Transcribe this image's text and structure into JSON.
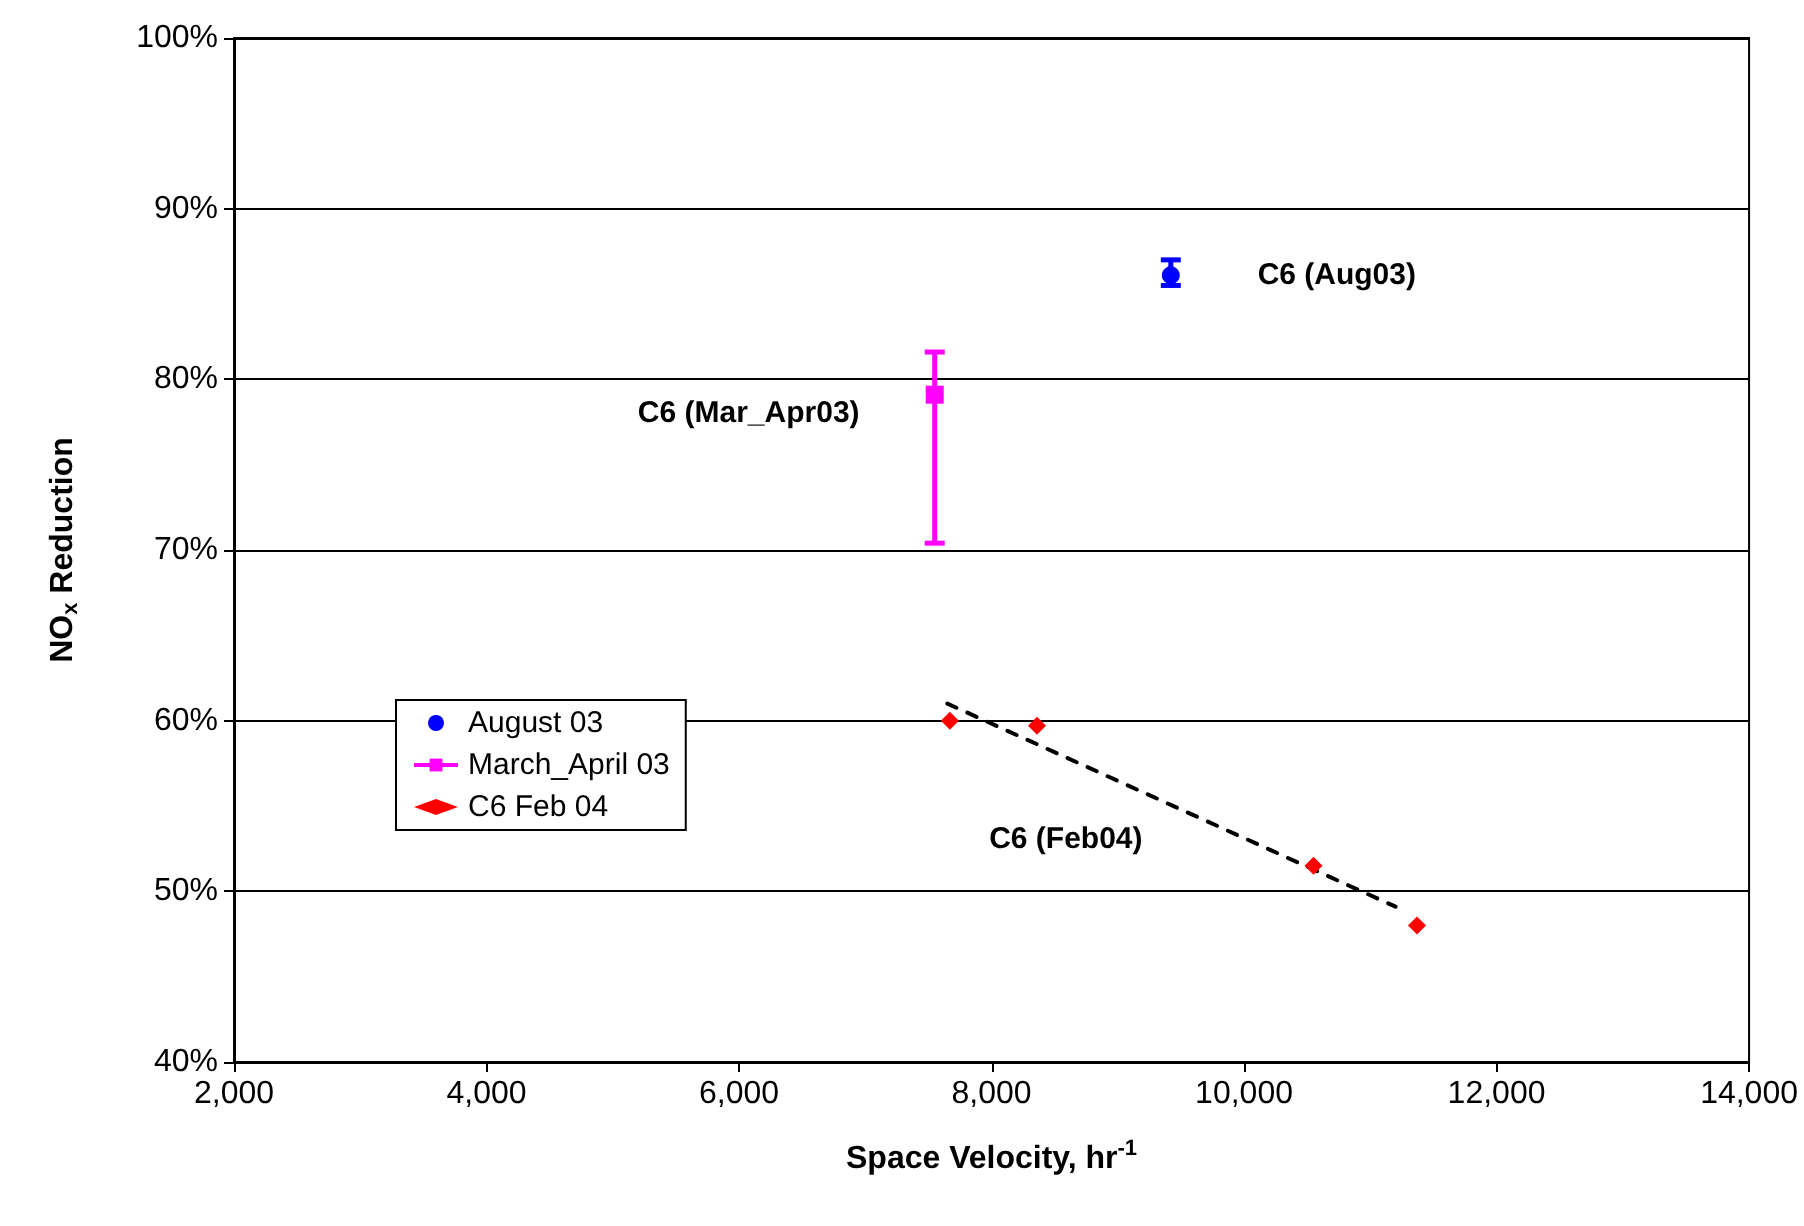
{
  "chart_data": {
    "type": "scatter",
    "xlabel": "Space Velocity, hr$^{-1}$",
    "ylabel": "NO$_{x}$ Reduction",
    "xlim": [
      2000,
      14000
    ],
    "xticks": [
      {
        "value": 2000,
        "label": "2,000"
      },
      {
        "value": 4000,
        "label": "4,000"
      },
      {
        "value": 6000,
        "label": "6,000"
      },
      {
        "value": 8000,
        "label": "8,000"
      },
      {
        "value": 10000,
        "label": "10,000"
      },
      {
        "value": 12000,
        "label": "12,000"
      },
      {
        "value": 14000,
        "label": "14,000"
      }
    ],
    "ylim": [
      40,
      100
    ],
    "yticks": [
      {
        "value": 40,
        "label": "40%"
      },
      {
        "value": 50,
        "label": "50%"
      },
      {
        "value": 60,
        "label": "60%"
      },
      {
        "value": 70,
        "label": "70%"
      },
      {
        "value": 80,
        "label": "80%"
      },
      {
        "value": 90,
        "label": "90%"
      },
      {
        "value": 100,
        "label": "100%"
      }
    ],
    "grid": "y",
    "legend": "center left",
    "series": [
      {
        "name": "August 03",
        "color": "#0000ff",
        "marker": "circle",
        "x": [
          9420
        ],
        "values": [
          86.1
        ],
        "errors": [
          [
            85.5,
            87.0
          ]
        ]
      },
      {
        "name": "March_April 03",
        "color": "#ff00ff",
        "marker": "square",
        "line_style": "solid",
        "x": [
          7550
        ],
        "values": [
          79.1
        ],
        "errors": [
          [
            70.4,
            81.6
          ]
        ]
      },
      {
        "name": "C6 Feb 04",
        "color": "#ff0000",
        "marker": "diamond",
        "x": [
          7670,
          8360,
          10550,
          11370
        ],
        "values": [
          60.0,
          59.7,
          51.5,
          48.0
        ]
      },
      {
        "type": "line",
        "color": "#000000",
        "marker": "none",
        "line_style": "dashed",
        "x": [
          7650,
          11200
        ],
        "values": [
          61.0,
          49.1
        ]
      }
    ],
    "annotations": [
      "C6 (Aug03)",
      "C6 (Mar_Apr03)",
      "C6 (Feb04)"
    ]
  }
}
